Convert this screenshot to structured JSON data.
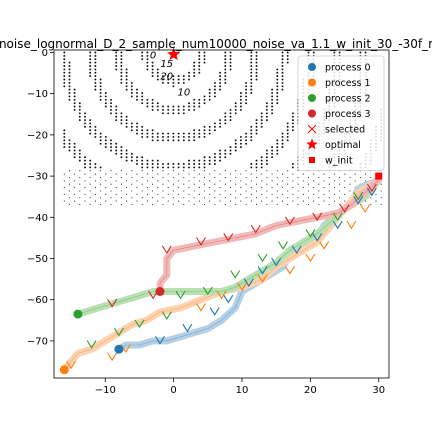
{
  "chart_data": {
    "type": "scatter",
    "title": "noise_lognormal_D_2_sample_num10000_noise_va_1.1_w_init_30_-30f_r",
    "xlabel": "",
    "ylabel": "",
    "xlim": [
      -17.5,
      31.5
    ],
    "ylim": [
      -79,
      0.6
    ],
    "x_ticks": [
      -10,
      0,
      10,
      20,
      30
    ],
    "y_ticks": [
      0,
      -10,
      -20,
      -30,
      -40,
      -50,
      -60,
      -70
    ],
    "grid": false,
    "legend_position": "top-right",
    "legend": [
      {
        "label": "process 0",
        "marker": "circle",
        "color": "#1f77b4"
      },
      {
        "label": "process 1",
        "marker": "circle",
        "color": "#ff7f0e"
      },
      {
        "label": "process 2",
        "marker": "circle",
        "color": "#2ca02c"
      },
      {
        "label": "process 3",
        "marker": "circle",
        "color": "#d62728"
      },
      {
        "label": "selected",
        "marker": "x",
        "color": "#ff0000"
      },
      {
        "label": "optimal",
        "marker": "star",
        "color": "#ff0000"
      },
      {
        "label": "w_init",
        "marker": "square",
        "color": "#ff0000"
      }
    ],
    "contour_labels": [
      "0",
      "20",
      "15",
      "10"
    ],
    "optimal": {
      "x": 0,
      "y": 0
    },
    "w_init": {
      "x": 30,
      "y": -30
    },
    "series": [
      {
        "name": "process 0",
        "color": "#1f77b4",
        "light_color": "#b5d0e6",
        "path": [
          [
            30,
            -31
          ],
          [
            27,
            -33
          ],
          [
            26,
            -37
          ],
          [
            24,
            -39
          ],
          [
            22,
            -42
          ],
          [
            21,
            -45
          ],
          [
            19,
            -47
          ],
          [
            17,
            -49
          ],
          [
            16,
            -52
          ],
          [
            14,
            -54
          ],
          [
            12,
            -56
          ],
          [
            10,
            -58
          ],
          [
            9,
            -62
          ],
          [
            7,
            -65
          ],
          [
            5,
            -67
          ],
          [
            3,
            -68
          ],
          [
            1,
            -69
          ],
          [
            -1,
            -70
          ],
          [
            -3,
            -70
          ],
          [
            -5,
            -71
          ],
          [
            -7,
            -71
          ],
          [
            -8,
            -72
          ]
        ],
        "end": [
          -8,
          -72
        ]
      },
      {
        "name": "process 1",
        "color": "#ff7f0e",
        "light_color": "#fdd2b0",
        "path": [
          [
            30,
            -31
          ],
          [
            27,
            -34
          ],
          [
            25,
            -38
          ],
          [
            23,
            -42
          ],
          [
            21,
            -46
          ],
          [
            18,
            -49
          ],
          [
            15,
            -52
          ],
          [
            13,
            -55
          ],
          [
            10,
            -57
          ],
          [
            7,
            -58
          ],
          [
            4,
            -60
          ],
          [
            1,
            -62
          ],
          [
            -2,
            -63
          ],
          [
            -4,
            -65
          ],
          [
            -6,
            -66
          ],
          [
            -8,
            -68
          ],
          [
            -10,
            -70
          ],
          [
            -12,
            -72
          ],
          [
            -14,
            -73
          ],
          [
            -15,
            -75
          ],
          [
            -16,
            -77
          ]
        ],
        "end": [
          -16,
          -77
        ]
      },
      {
        "name": "process 2",
        "color": "#2ca02c",
        "light_color": "#b9e0b2",
        "path": [
          [
            30,
            -31
          ],
          [
            28,
            -35
          ],
          [
            25,
            -38
          ],
          [
            23,
            -41
          ],
          [
            21,
            -44
          ],
          [
            19,
            -46
          ],
          [
            17,
            -48
          ],
          [
            15,
            -51
          ],
          [
            13,
            -53
          ],
          [
            11,
            -55
          ],
          [
            9,
            -57
          ],
          [
            7,
            -58
          ],
          [
            5,
            -58
          ],
          [
            3,
            -58
          ],
          [
            1,
            -58
          ],
          [
            -1,
            -58
          ],
          [
            -3,
            -58
          ],
          [
            -5,
            -59
          ],
          [
            -7,
            -60
          ],
          [
            -9,
            -61
          ],
          [
            -11,
            -62
          ],
          [
            -13,
            -63
          ],
          [
            -14,
            -63.5
          ]
        ],
        "end": [
          -14,
          -63.5
        ]
      },
      {
        "name": "process 3",
        "color": "#d62728",
        "light_color": "#f2b9b9",
        "path": [
          [
            30,
            -31
          ],
          [
            28,
            -34
          ],
          [
            26,
            -37
          ],
          [
            24,
            -39
          ],
          [
            21,
            -40
          ],
          [
            18,
            -41
          ],
          [
            15,
            -42
          ],
          [
            12,
            -44
          ],
          [
            9,
            -45
          ],
          [
            6,
            -46
          ],
          [
            3,
            -47
          ],
          [
            0,
            -48
          ],
          [
            -1,
            -50
          ],
          [
            -1,
            -52
          ],
          [
            -1,
            -54
          ],
          [
            -2,
            -56
          ],
          [
            -2,
            -58
          ]
        ],
        "end": [
          -2,
          -58
        ]
      }
    ],
    "selected_points": [
      {
        "x": 29,
        "y": -34
      },
      {
        "x": 27,
        "y": -36
      },
      {
        "x": 24,
        "y": -42
      },
      {
        "x": 21,
        "y": -45
      },
      {
        "x": 18,
        "y": -48
      },
      {
        "x": 15,
        "y": -51
      },
      {
        "x": 13,
        "y": -53
      },
      {
        "x": 11,
        "y": -56
      },
      {
        "x": 8,
        "y": -60
      },
      {
        "x": 6,
        "y": -63
      },
      {
        "x": 2,
        "y": -67
      },
      {
        "x": -2,
        "y": -70
      },
      {
        "x": -7,
        "y": -72
      },
      {
        "x": -9,
        "y": -74
      },
      {
        "x": -15,
        "y": -76
      },
      {
        "x": 28,
        "y": -38
      },
      {
        "x": 26,
        "y": -42
      },
      {
        "x": 22,
        "y": -47
      },
      {
        "x": 20,
        "y": -50
      },
      {
        "x": 17,
        "y": -53
      },
      {
        "x": 13,
        "y": -55
      },
      {
        "x": 10,
        "y": -57
      },
      {
        "x": 7,
        "y": -59
      },
      {
        "x": 4,
        "y": -62
      },
      {
        "x": -1,
        "y": -64
      },
      {
        "x": -5,
        "y": -66
      },
      {
        "x": -8,
        "y": -68
      },
      {
        "x": -12,
        "y": -71
      },
      {
        "x": 27,
        "y": -35
      },
      {
        "x": 24,
        "y": -40
      },
      {
        "x": 20,
        "y": -44
      },
      {
        "x": 16,
        "y": -47
      },
      {
        "x": 13,
        "y": -50
      },
      {
        "x": 9,
        "y": -54
      },
      {
        "x": 5,
        "y": -58
      },
      {
        "x": 1,
        "y": -59
      },
      {
        "x": -3,
        "y": -59
      },
      {
        "x": -9,
        "y": -61
      },
      {
        "x": 29,
        "y": -33
      },
      {
        "x": 25,
        "y": -38
      },
      {
        "x": 21,
        "y": -40
      },
      {
        "x": 17,
        "y": -41
      },
      {
        "x": 12,
        "y": -43
      },
      {
        "x": 8,
        "y": -45
      },
      {
        "x": 4,
        "y": -46
      },
      {
        "x": -1,
        "y": -48
      }
    ]
  }
}
